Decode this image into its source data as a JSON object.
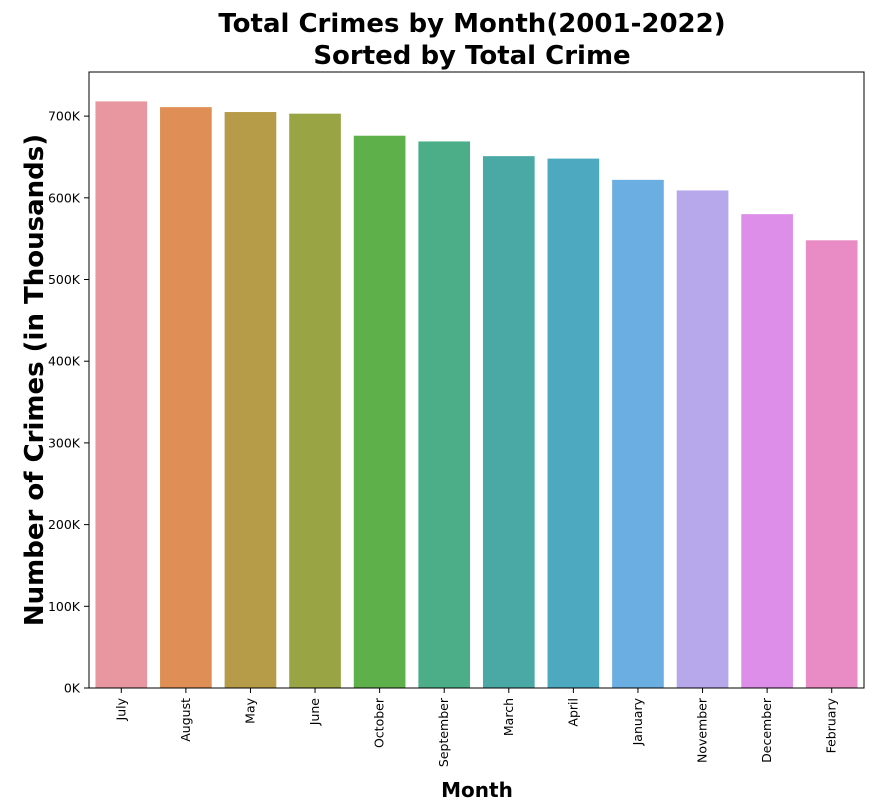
{
  "chart_data": {
    "type": "bar",
    "title_line1": "Total Crimes by Month(2001-2022)",
    "title_line2": "Sorted by Total Crime",
    "xlabel": "Month",
    "ylabel": "Number of Crimes (in Thousands)",
    "categories": [
      "July",
      "August",
      "May",
      "June",
      "October",
      "September",
      "March",
      "April",
      "January",
      "November",
      "December",
      "February"
    ],
    "values": [
      718000,
      711000,
      705000,
      703000,
      676000,
      669000,
      651000,
      648000,
      622000,
      609000,
      580000,
      548000
    ],
    "colors": [
      "#e8969f",
      "#df8f55",
      "#b69c48",
      "#99a444",
      "#5eb04a",
      "#4cae88",
      "#4aa9a5",
      "#4da9bf",
      "#6baee2",
      "#b6a8eb",
      "#dd8ee8",
      "#e98cc5"
    ],
    "ylim": [
      0,
      754000
    ],
    "yticks": [
      0,
      100000,
      200000,
      300000,
      400000,
      500000,
      600000,
      700000
    ],
    "ytick_labels": [
      "0K",
      "100K",
      "200K",
      "300K",
      "400K",
      "500K",
      "600K",
      "700K"
    ],
    "grid": false,
    "legend": "none"
  }
}
